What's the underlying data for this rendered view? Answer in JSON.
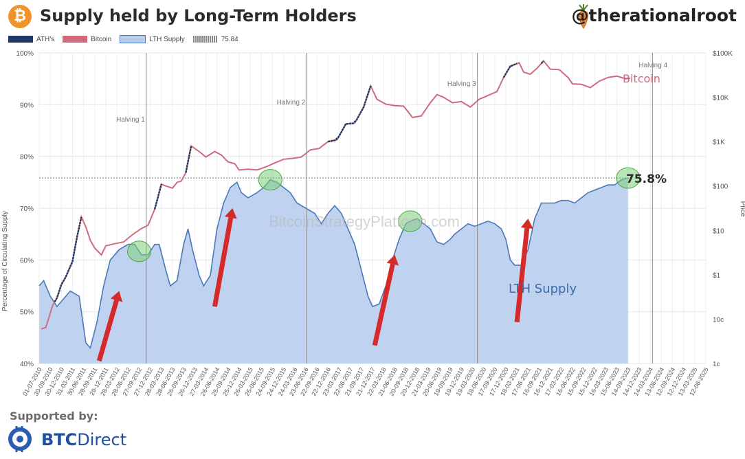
{
  "header": {
    "logo_symbol": "₿",
    "title": "Supply held by Long-Term Holders",
    "handle": "@therationalroot"
  },
  "legend": [
    {
      "label": "ATH's",
      "color": "#1f3a66"
    },
    {
      "label": "Bitcoin",
      "color": "#d06a7d"
    },
    {
      "label": "LTH Supply",
      "color": "#b8cdee"
    },
    {
      "label": "75.84",
      "color": "#8a8a8a"
    }
  ],
  "footer": {
    "label": "Supported by:",
    "brand_bold": "BTC",
    "brand_rest": "Direct"
  },
  "chart_data": {
    "type": "area",
    "title": "Supply held by Long-Term Holders",
    "ylabel": "Percentage of Circulating Supply",
    "y2label": "Price",
    "ylim": [
      40,
      100
    ],
    "y_ticks": [
      "40%",
      "50%",
      "60%",
      "70%",
      "80%",
      "90%",
      "100%"
    ],
    "y2_log_scale": true,
    "y2_ticks": [
      "1c",
      "10c",
      "$1",
      "$10",
      "$100",
      "$1K",
      "$10K",
      "$100K"
    ],
    "x_ticks": [
      "01-07-2010",
      "30-09-2010",
      "30-12-2010",
      "31-03-2011",
      "30-06-2011",
      "29-09-2011",
      "29-12-2011",
      "28-03-2012",
      "28-06-2012",
      "27-09-2012",
      "27-12-2012",
      "28-03-2013",
      "28-06-2013",
      "26-09-2013",
      "26-12-2013",
      "27-03-2014",
      "26-06-2014",
      "25-09-2014",
      "25-12-2014",
      "26-03-2015",
      "25-06-2015",
      "24-09-2015",
      "24-12-2015",
      "24-03-2016",
      "23-06-2016",
      "22-09-2016",
      "22-12-2016",
      "23-03-2017",
      "22-06-2017",
      "21-09-2017",
      "21-12-2017",
      "22-03-2018",
      "21-06-2018",
      "20-09-2018",
      "20-12-2018",
      "21-03-2019",
      "20-06-2019",
      "19-09-2019",
      "19-12-2019",
      "19-03-2020",
      "18-06-2020",
      "17-09-2020",
      "17-12-2020",
      "18-03-2021",
      "17-06-2021",
      "16-09-2021",
      "16-12-2021",
      "17-03-2022",
      "16-06-2022",
      "15-09-2022",
      "15-12-2022",
      "16-03-2023",
      "15-06-2023",
      "14-09-2023",
      "14-12-2023",
      "14-03-2024",
      "13-06-2024",
      "12-09-2024",
      "12-12-2024",
      "13-03-2025",
      "12-06-2025"
    ],
    "watermark": "BitcoinStrategyPlatform.com",
    "halvings": [
      {
        "label": "Halving 1",
        "x": 2012.91
      },
      {
        "label": "Halving 2",
        "x": 2016.52
      },
      {
        "label": "Halving 3",
        "x": 2020.36
      },
      {
        "label": "Halving 4",
        "x": 2024.3
      }
    ],
    "threshold": {
      "label": "75.84",
      "value": 75.84
    },
    "annotations": [
      {
        "text": "Bitcoin",
        "color": "#d06a7d"
      },
      {
        "text": "LTH Supply",
        "color": "#3f6aa8"
      },
      {
        "text": "75.8%",
        "color": "#2a2a2a"
      }
    ],
    "xlim": [
      2010.5,
      2025.5
    ],
    "series": [
      {
        "name": "LTH Supply",
        "color": "#4a78b8",
        "fill": "#b8cdee",
        "points": [
          [
            2010.5,
            55
          ],
          [
            2010.6,
            56
          ],
          [
            2010.75,
            53
          ],
          [
            2010.9,
            51
          ],
          [
            2011.0,
            52
          ],
          [
            2011.2,
            54
          ],
          [
            2011.4,
            53
          ],
          [
            2011.55,
            44
          ],
          [
            2011.65,
            43
          ],
          [
            2011.8,
            48
          ],
          [
            2011.95,
            55
          ],
          [
            2012.1,
            60
          ],
          [
            2012.3,
            62
          ],
          [
            2012.5,
            63
          ],
          [
            2012.65,
            63
          ],
          [
            2012.8,
            61
          ],
          [
            2012.95,
            61
          ],
          [
            2013.1,
            63
          ],
          [
            2013.2,
            63
          ],
          [
            2013.35,
            58
          ],
          [
            2013.45,
            55
          ],
          [
            2013.6,
            56
          ],
          [
            2013.75,
            63
          ],
          [
            2013.85,
            66
          ],
          [
            2013.95,
            62
          ],
          [
            2014.1,
            57
          ],
          [
            2014.2,
            55
          ],
          [
            2014.35,
            57
          ],
          [
            2014.5,
            66
          ],
          [
            2014.65,
            71
          ],
          [
            2014.8,
            74
          ],
          [
            2014.95,
            75
          ],
          [
            2015.05,
            73
          ],
          [
            2015.2,
            72
          ],
          [
            2015.4,
            73
          ],
          [
            2015.55,
            74
          ],
          [
            2015.7,
            75.5
          ],
          [
            2015.85,
            75
          ],
          [
            2016.0,
            74
          ],
          [
            2016.15,
            73
          ],
          [
            2016.3,
            71
          ],
          [
            2016.5,
            70
          ],
          [
            2016.7,
            69
          ],
          [
            2016.85,
            67
          ],
          [
            2017.0,
            69
          ],
          [
            2017.15,
            70.5
          ],
          [
            2017.3,
            69
          ],
          [
            2017.45,
            66
          ],
          [
            2017.6,
            63
          ],
          [
            2017.75,
            58
          ],
          [
            2017.9,
            53
          ],
          [
            2018.0,
            51
          ],
          [
            2018.15,
            51.5
          ],
          [
            2018.3,
            55
          ],
          [
            2018.45,
            60
          ],
          [
            2018.6,
            64
          ],
          [
            2018.75,
            67
          ],
          [
            2018.85,
            67.5
          ],
          [
            2019.0,
            68
          ],
          [
            2019.15,
            67
          ],
          [
            2019.3,
            66
          ],
          [
            2019.45,
            63.5
          ],
          [
            2019.6,
            63
          ],
          [
            2019.75,
            64
          ],
          [
            2019.85,
            65
          ],
          [
            2020.0,
            66
          ],
          [
            2020.15,
            67
          ],
          [
            2020.3,
            66.5
          ],
          [
            2020.45,
            67
          ],
          [
            2020.6,
            67.5
          ],
          [
            2020.75,
            67
          ],
          [
            2020.9,
            66
          ],
          [
            2021.0,
            64
          ],
          [
            2021.1,
            60
          ],
          [
            2021.2,
            59
          ],
          [
            2021.35,
            59
          ],
          [
            2021.5,
            62
          ],
          [
            2021.65,
            68
          ],
          [
            2021.8,
            71
          ],
          [
            2021.95,
            71
          ],
          [
            2022.1,
            71
          ],
          [
            2022.25,
            71.5
          ],
          [
            2022.4,
            71.5
          ],
          [
            2022.55,
            71
          ],
          [
            2022.7,
            72
          ],
          [
            2022.85,
            73
          ],
          [
            2023.0,
            73.5
          ],
          [
            2023.15,
            74
          ],
          [
            2023.3,
            74.5
          ],
          [
            2023.45,
            74.5
          ],
          [
            2023.6,
            75.5
          ],
          [
            2023.75,
            75.84
          ]
        ]
      },
      {
        "name": "Bitcoin",
        "color": "#d06a7d",
        "points": [
          [
            2010.55,
            0.06
          ],
          [
            2010.65,
            0.065
          ],
          [
            2010.8,
            0.2
          ],
          [
            2010.9,
            0.3
          ],
          [
            2011.0,
            0.6
          ],
          [
            2011.1,
            0.9
          ],
          [
            2011.25,
            2
          ],
          [
            2011.35,
            7
          ],
          [
            2011.45,
            20
          ],
          [
            2011.55,
            12
          ],
          [
            2011.65,
            6
          ],
          [
            2011.75,
            4
          ],
          [
            2011.9,
            2.8
          ],
          [
            2012.0,
            4.5
          ],
          [
            2012.2,
            5
          ],
          [
            2012.4,
            5.5
          ],
          [
            2012.6,
            8
          ],
          [
            2012.8,
            11
          ],
          [
            2012.95,
            13
          ],
          [
            2013.1,
            30
          ],
          [
            2013.25,
            110
          ],
          [
            2013.35,
            100
          ],
          [
            2013.5,
            90
          ],
          [
            2013.6,
            120
          ],
          [
            2013.7,
            130
          ],
          [
            2013.8,
            200
          ],
          [
            2013.92,
            800
          ],
          [
            2014.0,
            700
          ],
          [
            2014.1,
            600
          ],
          [
            2014.25,
            450
          ],
          [
            2014.45,
            600
          ],
          [
            2014.6,
            500
          ],
          [
            2014.75,
            350
          ],
          [
            2014.9,
            320
          ],
          [
            2015.0,
            230
          ],
          [
            2015.2,
            240
          ],
          [
            2015.4,
            230
          ],
          [
            2015.6,
            270
          ],
          [
            2015.8,
            330
          ],
          [
            2016.0,
            400
          ],
          [
            2016.2,
            420
          ],
          [
            2016.4,
            450
          ],
          [
            2016.6,
            650
          ],
          [
            2016.8,
            700
          ],
          [
            2017.0,
            1000
          ],
          [
            2017.2,
            1100
          ],
          [
            2017.4,
            2500
          ],
          [
            2017.6,
            2600
          ],
          [
            2017.8,
            6000
          ],
          [
            2017.96,
            18000
          ],
          [
            2018.1,
            9000
          ],
          [
            2018.3,
            7000
          ],
          [
            2018.5,
            6500
          ],
          [
            2018.7,
            6300
          ],
          [
            2018.9,
            3500
          ],
          [
            2019.1,
            3800
          ],
          [
            2019.3,
            7500
          ],
          [
            2019.45,
            11500
          ],
          [
            2019.6,
            10000
          ],
          [
            2019.8,
            7500
          ],
          [
            2020.0,
            8000
          ],
          [
            2020.2,
            6000
          ],
          [
            2020.4,
            9000
          ],
          [
            2020.6,
            11000
          ],
          [
            2020.8,
            13500
          ],
          [
            2020.95,
            28000
          ],
          [
            2021.1,
            50000
          ],
          [
            2021.3,
            60000
          ],
          [
            2021.4,
            37000
          ],
          [
            2021.55,
            33000
          ],
          [
            2021.7,
            45000
          ],
          [
            2021.85,
            66000
          ],
          [
            2022.0,
            43000
          ],
          [
            2022.2,
            42000
          ],
          [
            2022.4,
            28000
          ],
          [
            2022.5,
            20000
          ],
          [
            2022.7,
            19500
          ],
          [
            2022.9,
            16500
          ],
          [
            2023.1,
            23000
          ],
          [
            2023.3,
            28000
          ],
          [
            2023.5,
            30000
          ],
          [
            2023.7,
            26000
          ],
          [
            2023.8,
            27000
          ]
        ]
      }
    ],
    "ath_segments": [
      [
        2010.85,
        2011.45
      ],
      [
        2013.1,
        2013.25
      ],
      [
        2013.8,
        2013.92
      ],
      [
        2017.0,
        2017.96
      ],
      [
        2020.95,
        2021.25
      ],
      [
        2021.8,
        2021.85
      ]
    ],
    "highlight_circles": [
      2012.75,
      2015.7,
      2018.85,
      2023.75
    ]
  }
}
